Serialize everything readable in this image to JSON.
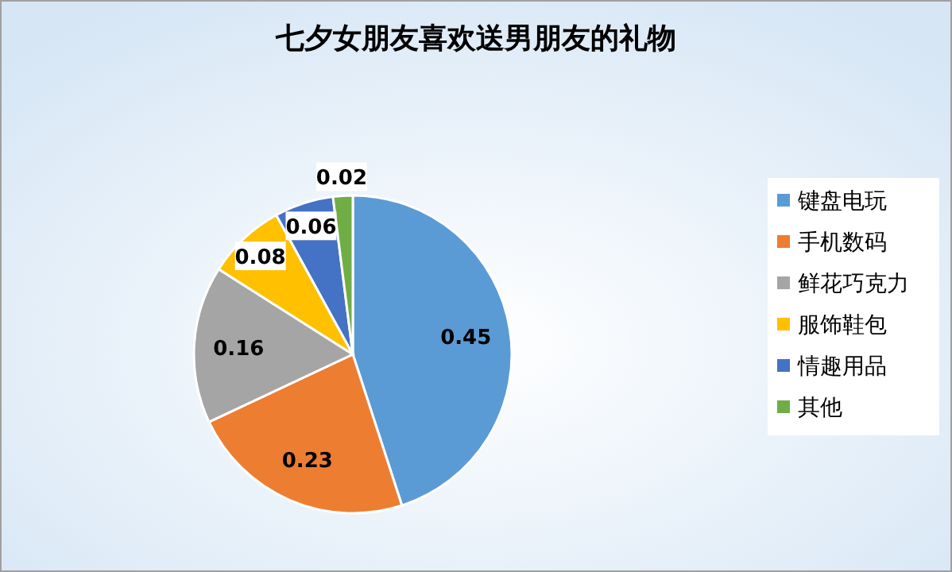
{
  "chart_data": {
    "type": "pie",
    "title": "七夕女朋友喜欢送男朋友的礼物",
    "categories": [
      "键盘电玩",
      "手机数码",
      "鲜花巧克力",
      "服饰鞋包",
      "情趣用品",
      "其他"
    ],
    "values": [
      0.45,
      0.23,
      0.16,
      0.08,
      0.06,
      0.02
    ],
    "colors": [
      "#5b9bd5",
      "#ed7d31",
      "#a5a5a5",
      "#ffc000",
      "#4472c4",
      "#70ad47"
    ],
    "data_labels": true,
    "legend": "right"
  }
}
